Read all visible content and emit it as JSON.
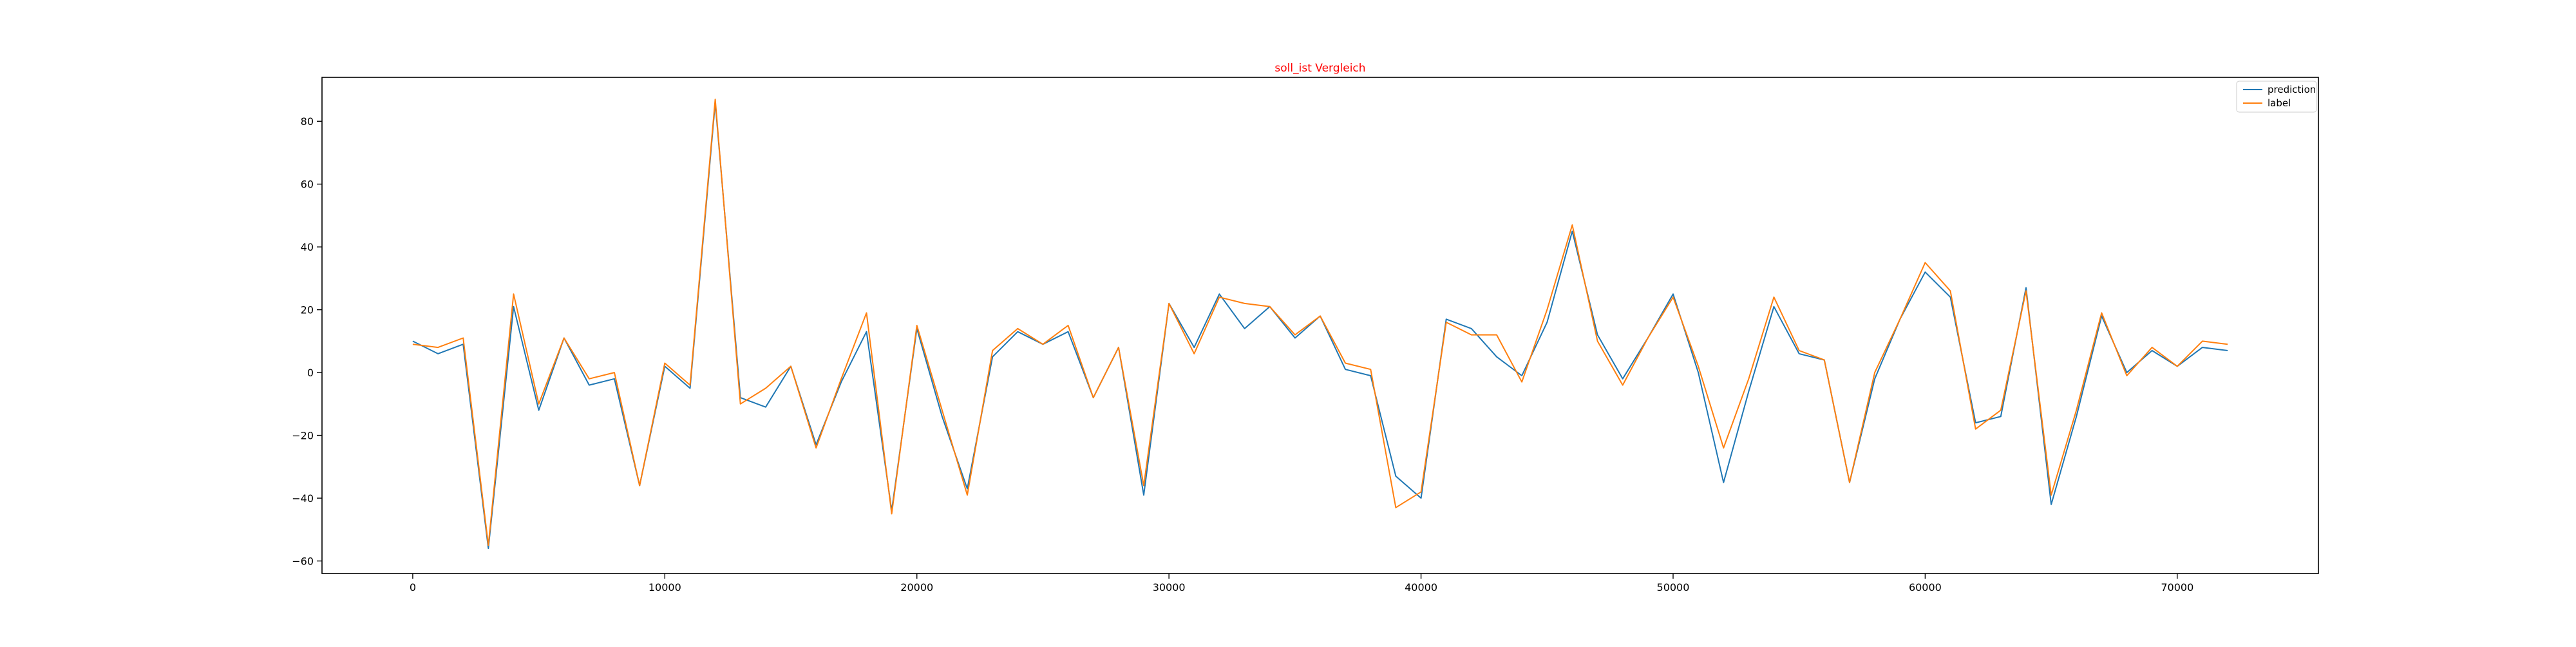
{
  "chart_data": {
    "type": "line",
    "title": "soll_ist Vergleich",
    "xlabel": "",
    "ylabel": "",
    "xlim": [
      -3600,
      75600
    ],
    "ylim": [
      -64,
      94
    ],
    "x_ticks": [
      0,
      10000,
      20000,
      30000,
      40000,
      50000,
      60000,
      70000
    ],
    "y_ticks": [
      -60,
      -40,
      -20,
      0,
      20,
      40,
      60,
      80
    ],
    "grid": false,
    "legend_position": "top-right",
    "colors": {
      "prediction": "#1f77b4",
      "label": "#ff7f0e",
      "title": "#ff0000",
      "axes": "#000000"
    },
    "x": [
      0,
      1000,
      2000,
      3000,
      4000,
      5000,
      6000,
      7000,
      8000,
      9000,
      10000,
      11000,
      12000,
      13000,
      14000,
      15000,
      16000,
      17000,
      18000,
      19000,
      20000,
      21000,
      22000,
      23000,
      24000,
      25000,
      26000,
      27000,
      28000,
      29000,
      30000,
      31000,
      32000,
      33000,
      34000,
      35000,
      36000,
      37000,
      38000,
      39000,
      40000,
      41000,
      42000,
      43000,
      44000,
      45000,
      46000,
      47000,
      48000,
      49000,
      50000,
      51000,
      52000,
      53000,
      54000,
      55000,
      56000,
      57000,
      58000,
      59000,
      60000,
      61000,
      62000,
      63000,
      64000,
      65000,
      66000,
      67000,
      68000,
      69000,
      70000,
      71000,
      72000
    ],
    "series": [
      {
        "name": "prediction",
        "values": [
          10,
          6,
          9,
          -56,
          21,
          -12,
          11,
          -4,
          -2,
          -36,
          2,
          -5,
          86,
          -8,
          -11,
          2,
          -23,
          -3,
          13,
          -44,
          14,
          -14,
          -37,
          5,
          13,
          9,
          13,
          -8,
          8,
          -39,
          22,
          8,
          25,
          14,
          21,
          11,
          18,
          1,
          -1,
          -33,
          -40,
          17,
          14,
          5,
          -1,
          16,
          45,
          12,
          -2,
          11,
          25,
          0,
          -35,
          -6,
          21,
          6,
          4,
          -35,
          -2,
          17,
          32,
          24,
          -16,
          -14,
          27,
          -42,
          -14,
          18,
          0,
          7,
          2,
          8,
          7
        ]
      },
      {
        "name": "label",
        "values": [
          9,
          8,
          11,
          -55,
          25,
          -10,
          11,
          -2,
          0,
          -36,
          3,
          -4,
          87,
          -10,
          -5,
          2,
          -24,
          -2,
          19,
          -45,
          15,
          -12,
          -39,
          7,
          14,
          9,
          15,
          -8,
          8,
          -36,
          22,
          6,
          24,
          22,
          21,
          12,
          18,
          3,
          1,
          -43,
          -38,
          16,
          12,
          12,
          -3,
          20,
          47,
          10,
          -4,
          11,
          24,
          2,
          -24,
          -2,
          24,
          7,
          4,
          -35,
          0,
          17,
          35,
          26,
          -18,
          -12,
          26,
          -39,
          -12,
          19,
          -1,
          8,
          2,
          10,
          9
        ]
      }
    ]
  }
}
